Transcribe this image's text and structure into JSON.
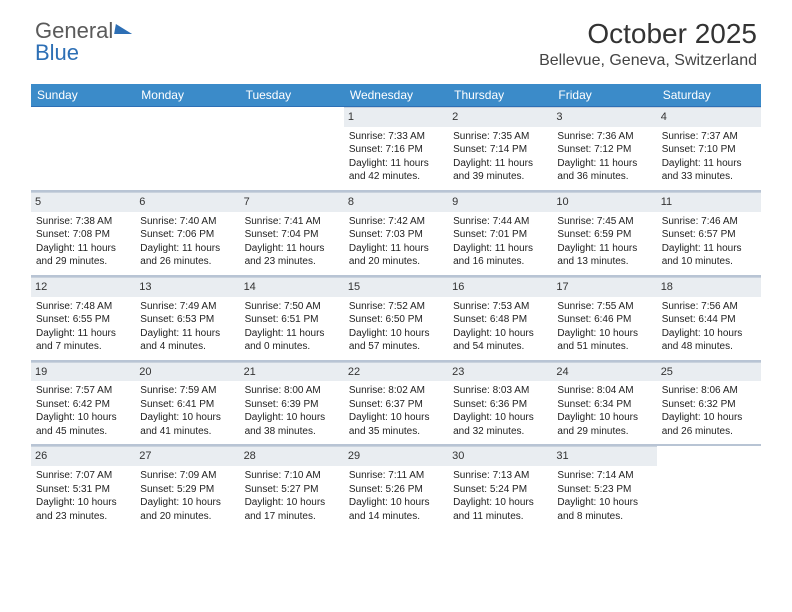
{
  "logo": {
    "part1": "General",
    "part2": "Blue"
  },
  "title": "October 2025",
  "location": "Bellevue, Geneva, Switzerland",
  "day_headers": [
    "Sunday",
    "Monday",
    "Tuesday",
    "Wednesday",
    "Thursday",
    "Friday",
    "Saturday"
  ],
  "colors": {
    "header_bg": "#3b8bc9",
    "header_text": "#ffffff",
    "daynum_bg": "#e9edf1",
    "week_border": "#b8c4d4",
    "accent": "#2d6fb5"
  },
  "weeks": [
    [
      {
        "n": "",
        "sr": "",
        "ss": "",
        "dl": ""
      },
      {
        "n": "",
        "sr": "",
        "ss": "",
        "dl": ""
      },
      {
        "n": "",
        "sr": "",
        "ss": "",
        "dl": ""
      },
      {
        "n": "1",
        "sr": "Sunrise: 7:33 AM",
        "ss": "Sunset: 7:16 PM",
        "dl": "Daylight: 11 hours and 42 minutes."
      },
      {
        "n": "2",
        "sr": "Sunrise: 7:35 AM",
        "ss": "Sunset: 7:14 PM",
        "dl": "Daylight: 11 hours and 39 minutes."
      },
      {
        "n": "3",
        "sr": "Sunrise: 7:36 AM",
        "ss": "Sunset: 7:12 PM",
        "dl": "Daylight: 11 hours and 36 minutes."
      },
      {
        "n": "4",
        "sr": "Sunrise: 7:37 AM",
        "ss": "Sunset: 7:10 PM",
        "dl": "Daylight: 11 hours and 33 minutes."
      }
    ],
    [
      {
        "n": "5",
        "sr": "Sunrise: 7:38 AM",
        "ss": "Sunset: 7:08 PM",
        "dl": "Daylight: 11 hours and 29 minutes."
      },
      {
        "n": "6",
        "sr": "Sunrise: 7:40 AM",
        "ss": "Sunset: 7:06 PM",
        "dl": "Daylight: 11 hours and 26 minutes."
      },
      {
        "n": "7",
        "sr": "Sunrise: 7:41 AM",
        "ss": "Sunset: 7:04 PM",
        "dl": "Daylight: 11 hours and 23 minutes."
      },
      {
        "n": "8",
        "sr": "Sunrise: 7:42 AM",
        "ss": "Sunset: 7:03 PM",
        "dl": "Daylight: 11 hours and 20 minutes."
      },
      {
        "n": "9",
        "sr": "Sunrise: 7:44 AM",
        "ss": "Sunset: 7:01 PM",
        "dl": "Daylight: 11 hours and 16 minutes."
      },
      {
        "n": "10",
        "sr": "Sunrise: 7:45 AM",
        "ss": "Sunset: 6:59 PM",
        "dl": "Daylight: 11 hours and 13 minutes."
      },
      {
        "n": "11",
        "sr": "Sunrise: 7:46 AM",
        "ss": "Sunset: 6:57 PM",
        "dl": "Daylight: 11 hours and 10 minutes."
      }
    ],
    [
      {
        "n": "12",
        "sr": "Sunrise: 7:48 AM",
        "ss": "Sunset: 6:55 PM",
        "dl": "Daylight: 11 hours and 7 minutes."
      },
      {
        "n": "13",
        "sr": "Sunrise: 7:49 AM",
        "ss": "Sunset: 6:53 PM",
        "dl": "Daylight: 11 hours and 4 minutes."
      },
      {
        "n": "14",
        "sr": "Sunrise: 7:50 AM",
        "ss": "Sunset: 6:51 PM",
        "dl": "Daylight: 11 hours and 0 minutes."
      },
      {
        "n": "15",
        "sr": "Sunrise: 7:52 AM",
        "ss": "Sunset: 6:50 PM",
        "dl": "Daylight: 10 hours and 57 minutes."
      },
      {
        "n": "16",
        "sr": "Sunrise: 7:53 AM",
        "ss": "Sunset: 6:48 PM",
        "dl": "Daylight: 10 hours and 54 minutes."
      },
      {
        "n": "17",
        "sr": "Sunrise: 7:55 AM",
        "ss": "Sunset: 6:46 PM",
        "dl": "Daylight: 10 hours and 51 minutes."
      },
      {
        "n": "18",
        "sr": "Sunrise: 7:56 AM",
        "ss": "Sunset: 6:44 PM",
        "dl": "Daylight: 10 hours and 48 minutes."
      }
    ],
    [
      {
        "n": "19",
        "sr": "Sunrise: 7:57 AM",
        "ss": "Sunset: 6:42 PM",
        "dl": "Daylight: 10 hours and 45 minutes."
      },
      {
        "n": "20",
        "sr": "Sunrise: 7:59 AM",
        "ss": "Sunset: 6:41 PM",
        "dl": "Daylight: 10 hours and 41 minutes."
      },
      {
        "n": "21",
        "sr": "Sunrise: 8:00 AM",
        "ss": "Sunset: 6:39 PM",
        "dl": "Daylight: 10 hours and 38 minutes."
      },
      {
        "n": "22",
        "sr": "Sunrise: 8:02 AM",
        "ss": "Sunset: 6:37 PM",
        "dl": "Daylight: 10 hours and 35 minutes."
      },
      {
        "n": "23",
        "sr": "Sunrise: 8:03 AM",
        "ss": "Sunset: 6:36 PM",
        "dl": "Daylight: 10 hours and 32 minutes."
      },
      {
        "n": "24",
        "sr": "Sunrise: 8:04 AM",
        "ss": "Sunset: 6:34 PM",
        "dl": "Daylight: 10 hours and 29 minutes."
      },
      {
        "n": "25",
        "sr": "Sunrise: 8:06 AM",
        "ss": "Sunset: 6:32 PM",
        "dl": "Daylight: 10 hours and 26 minutes."
      }
    ],
    [
      {
        "n": "26",
        "sr": "Sunrise: 7:07 AM",
        "ss": "Sunset: 5:31 PM",
        "dl": "Daylight: 10 hours and 23 minutes."
      },
      {
        "n": "27",
        "sr": "Sunrise: 7:09 AM",
        "ss": "Sunset: 5:29 PM",
        "dl": "Daylight: 10 hours and 20 minutes."
      },
      {
        "n": "28",
        "sr": "Sunrise: 7:10 AM",
        "ss": "Sunset: 5:27 PM",
        "dl": "Daylight: 10 hours and 17 minutes."
      },
      {
        "n": "29",
        "sr": "Sunrise: 7:11 AM",
        "ss": "Sunset: 5:26 PM",
        "dl": "Daylight: 10 hours and 14 minutes."
      },
      {
        "n": "30",
        "sr": "Sunrise: 7:13 AM",
        "ss": "Sunset: 5:24 PM",
        "dl": "Daylight: 10 hours and 11 minutes."
      },
      {
        "n": "31",
        "sr": "Sunrise: 7:14 AM",
        "ss": "Sunset: 5:23 PM",
        "dl": "Daylight: 10 hours and 8 minutes."
      },
      {
        "n": "",
        "sr": "",
        "ss": "",
        "dl": ""
      }
    ]
  ]
}
